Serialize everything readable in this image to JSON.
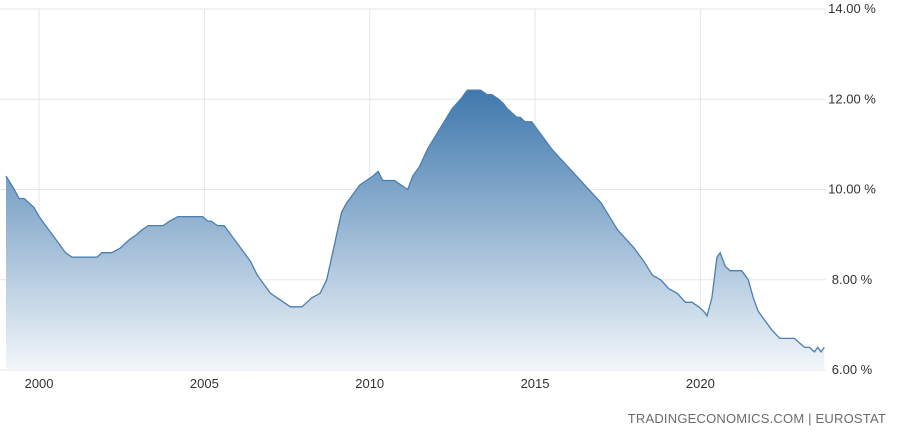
{
  "source_text": "TRADINGECONOMICS.COM | EUROSTAT",
  "colors": {
    "line": "#4a7fb0",
    "fill_top": "#3f78ad",
    "fill_bottom": "#f2f6fa",
    "grid": "#e6e6e6",
    "text": "#333333"
  },
  "chart_data": {
    "type": "area",
    "title": "",
    "xlabel": "",
    "ylabel": "",
    "xlim": [
      1999.0,
      2023.8
    ],
    "ylim": [
      6.0,
      14.0
    ],
    "grid": {
      "vertical": true,
      "horizontal": true
    },
    "x_ticks": [
      2000,
      2005,
      2010,
      2015,
      2020
    ],
    "x_tick_labels": [
      "2000",
      "2005",
      "2010",
      "2015",
      "2020"
    ],
    "y_ticks": [
      6,
      8,
      10,
      12,
      14
    ],
    "y_tick_labels": [
      "6.00 %",
      "8.00 %",
      "10.00 %",
      "12.00 %",
      "14.00 %"
    ],
    "series": [
      {
        "x": [
          1999.0,
          1999.25,
          1999.4,
          1999.55,
          1999.7,
          1999.85,
          2000.0,
          2000.2,
          2000.4,
          2000.6,
          2000.8,
          2001.0,
          2001.2,
          2001.5,
          2001.75,
          2001.9,
          2002.2,
          2002.45,
          2002.6,
          2002.75,
          2002.95,
          2003.1,
          2003.3,
          2003.5,
          2003.75,
          2003.95,
          2004.2,
          2004.5,
          2004.8,
          2004.95,
          2005.1,
          2005.2,
          2005.4,
          2005.6,
          2005.8,
          2006.0,
          2006.2,
          2006.4,
          2006.6,
          2006.8,
          2007.0,
          2007.2,
          2007.4,
          2007.6,
          2007.75,
          2007.95,
          2008.1,
          2008.25,
          2008.5,
          2008.7,
          2008.85,
          2009.0,
          2009.15,
          2009.3,
          2009.5,
          2009.7,
          2009.9,
          2010.1,
          2010.25,
          2010.4,
          2010.55,
          2010.75,
          2010.95,
          2011.15,
          2011.3,
          2011.5,
          2011.75,
          2012.0,
          2012.25,
          2012.5,
          2012.75,
          2012.95,
          2013.1,
          2013.35,
          2013.55,
          2013.7,
          2013.9,
          2014.05,
          2014.15,
          2014.3,
          2014.45,
          2014.55,
          2014.7,
          2014.9,
          2015.1,
          2015.3,
          2015.5,
          2015.75,
          2016.0,
          2016.25,
          2016.5,
          2016.75,
          2017.0,
          2017.25,
          2017.5,
          2017.75,
          2018.0,
          2018.3,
          2018.55,
          2018.8,
          2019.05,
          2019.3,
          2019.55,
          2019.75,
          2019.95,
          2020.1,
          2020.2,
          2020.35,
          2020.5,
          2020.6,
          2020.75,
          2020.9,
          2021.05,
          2021.25,
          2021.45,
          2021.6,
          2021.75,
          2021.95,
          2022.15,
          2022.4,
          2022.6,
          2022.85,
          2023.0,
          2023.15,
          2023.3,
          2023.45,
          2023.55,
          2023.65,
          2023.75
        ],
        "y": [
          10.3,
          10.0,
          9.8,
          9.8,
          9.7,
          9.6,
          9.4,
          9.2,
          9.0,
          8.8,
          8.6,
          8.5,
          8.5,
          8.5,
          8.5,
          8.6,
          8.6,
          8.7,
          8.8,
          8.9,
          9.0,
          9.1,
          9.2,
          9.2,
          9.2,
          9.3,
          9.4,
          9.4,
          9.4,
          9.4,
          9.3,
          9.3,
          9.2,
          9.2,
          9.0,
          8.8,
          8.6,
          8.4,
          8.1,
          7.9,
          7.7,
          7.6,
          7.5,
          7.4,
          7.4,
          7.4,
          7.5,
          7.6,
          7.7,
          8.0,
          8.5,
          9.0,
          9.5,
          9.7,
          9.9,
          10.1,
          10.2,
          10.3,
          10.4,
          10.2,
          10.2,
          10.2,
          10.1,
          10.0,
          10.3,
          10.5,
          10.9,
          11.2,
          11.5,
          11.8,
          12.0,
          12.2,
          12.2,
          12.2,
          12.1,
          12.1,
          12.0,
          11.9,
          11.8,
          11.7,
          11.6,
          11.6,
          11.5,
          11.5,
          11.3,
          11.1,
          10.9,
          10.7,
          10.5,
          10.3,
          10.1,
          9.9,
          9.7,
          9.4,
          9.1,
          8.9,
          8.7,
          8.4,
          8.1,
          8.0,
          7.8,
          7.7,
          7.5,
          7.5,
          7.4,
          7.3,
          7.2,
          7.6,
          8.5,
          8.6,
          8.3,
          8.2,
          8.2,
          8.2,
          8.0,
          7.6,
          7.3,
          7.1,
          6.9,
          6.7,
          6.7,
          6.7,
          6.6,
          6.5,
          6.5,
          6.4,
          6.5,
          6.4,
          6.5
        ]
      }
    ]
  }
}
